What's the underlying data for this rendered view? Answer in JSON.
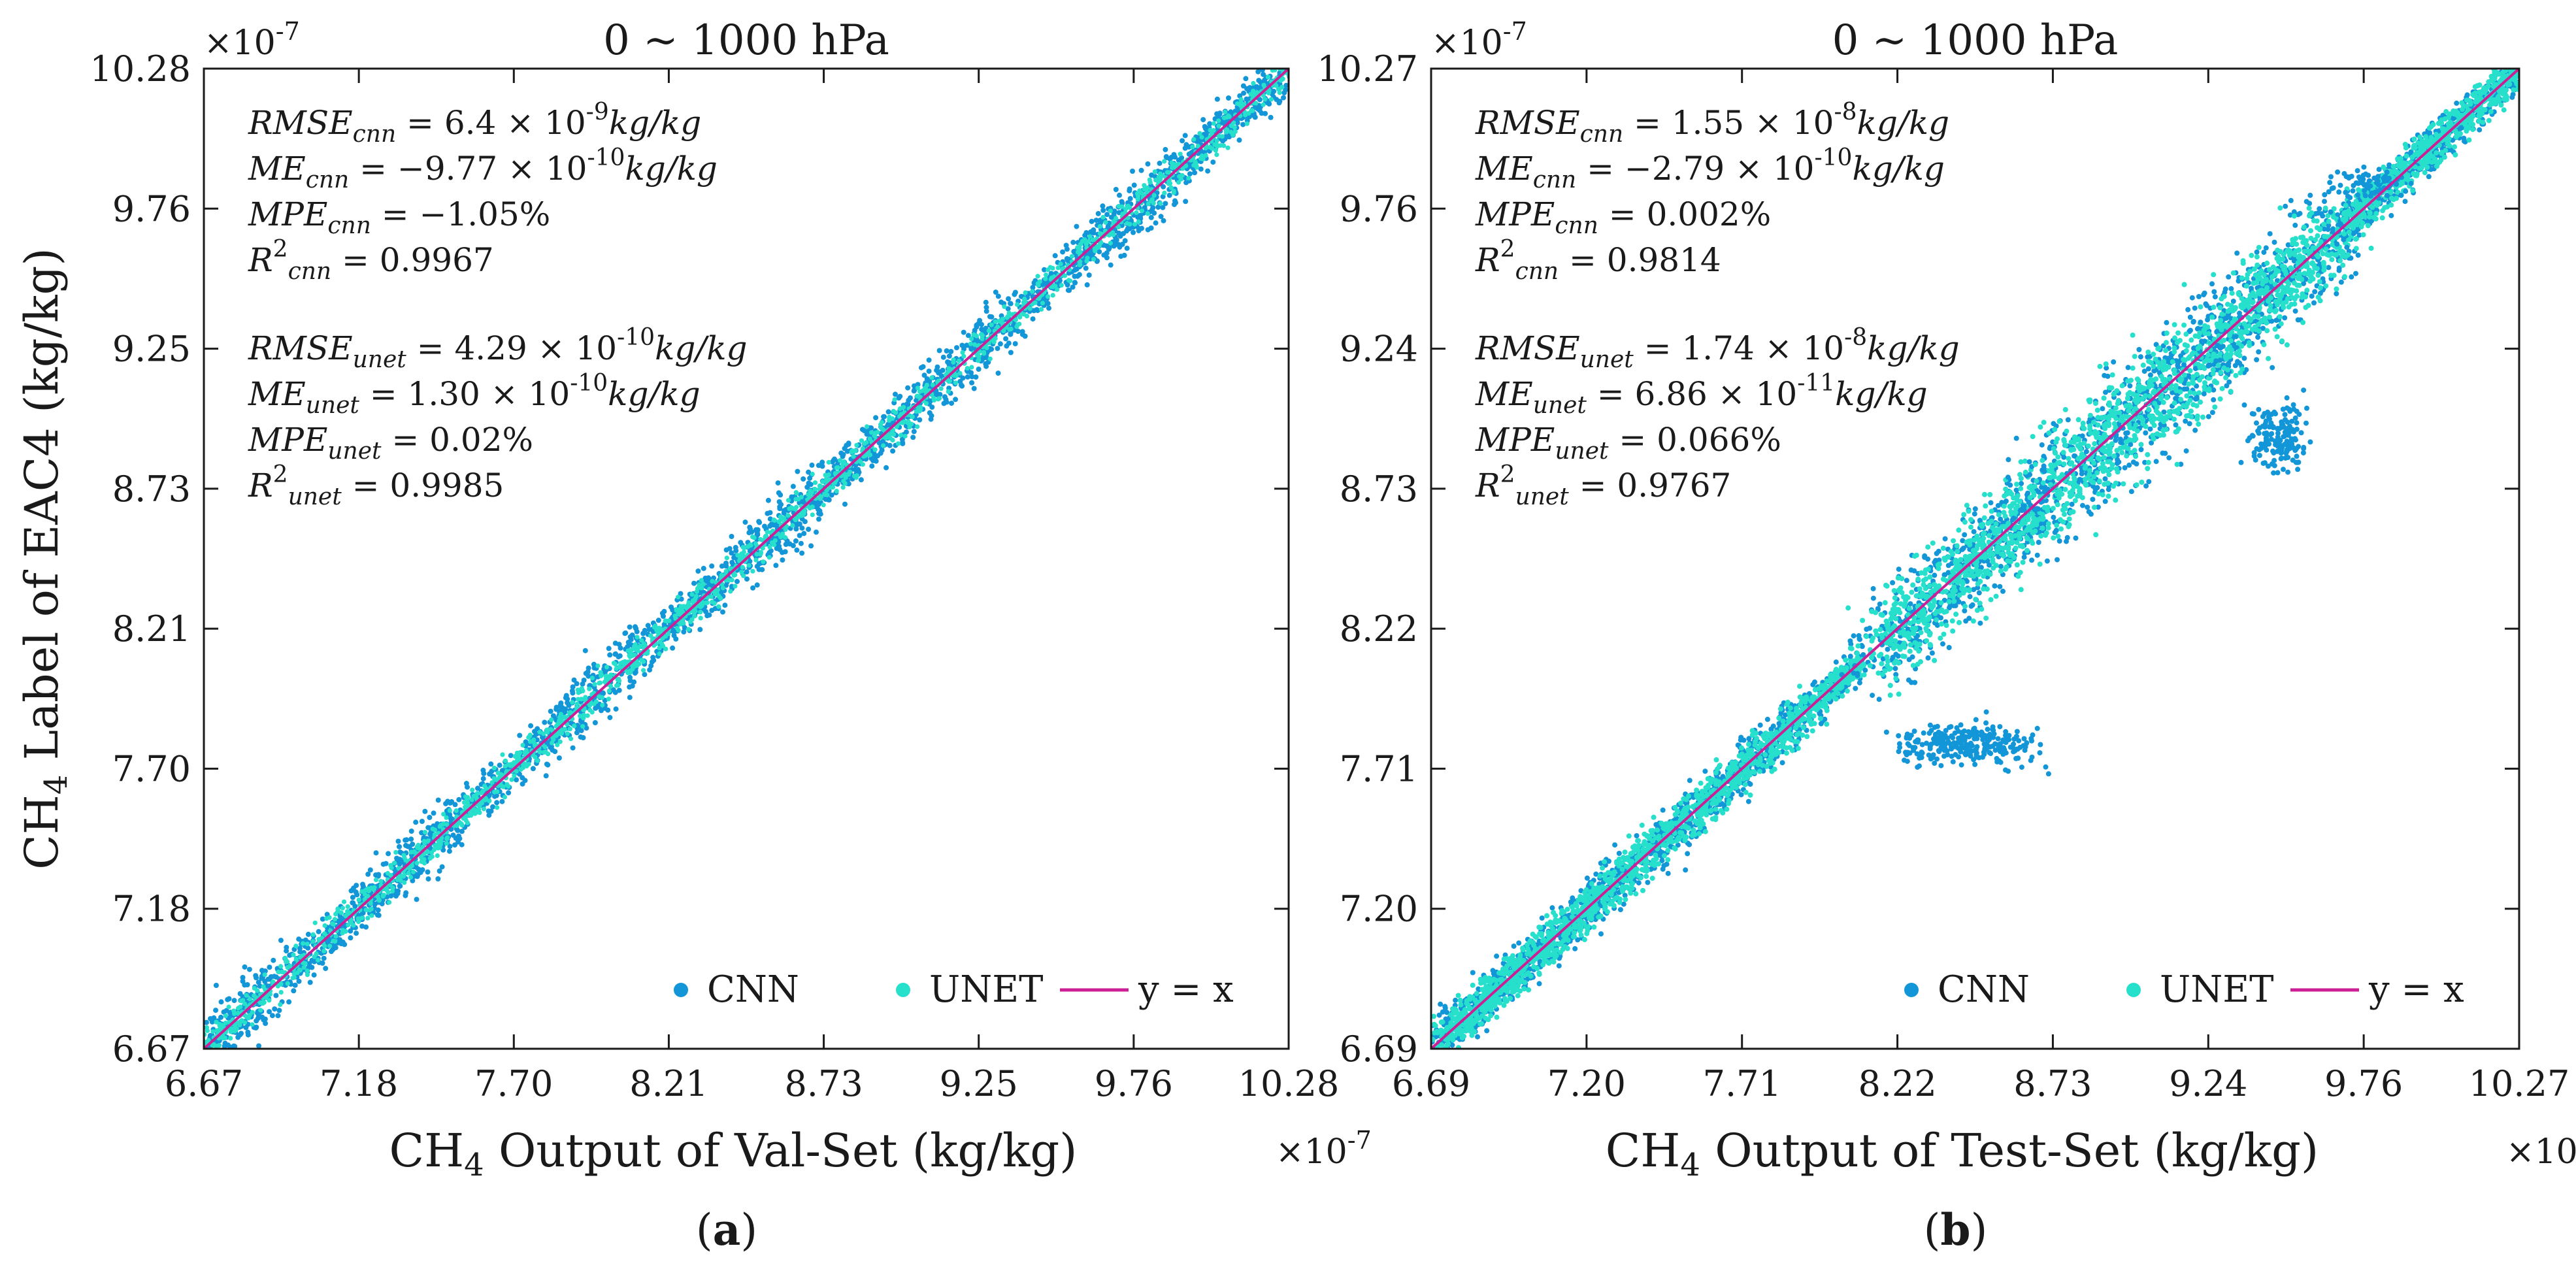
{
  "chart_data": [
    {
      "type": "scatter",
      "panel_label": "a",
      "title": "0 ~ 1000 hPa",
      "xlabel_prefix": "CH",
      "xlabel_sub": "4",
      "xlabel_rest": " Output of Val-Set (kg/kg)",
      "ylabel_prefix": "CH",
      "ylabel_sub": "4",
      "ylabel_rest": " Label of EAC4 (kg/kg)",
      "scale_label": "×10",
      "scale_exp": "-7",
      "xlim": [
        6.67,
        10.28
      ],
      "ylim": [
        6.67,
        10.28
      ],
      "xticks": [
        "6.67",
        "7.18",
        "7.70",
        "8.21",
        "8.73",
        "9.25",
        "9.76",
        "10.28"
      ],
      "yticks": [
        "6.67",
        "7.18",
        "7.70",
        "8.21",
        "8.73",
        "9.25",
        "9.76",
        "10.28"
      ],
      "stats_cnn": {
        "rmse_lbl": "RMSE",
        "rmse_val": " = 6.4 × 10",
        "rmse_exp": "-9",
        "rmse_unit": "kg/kg",
        "me_lbl": "ME",
        "me_val": " = −9.77 × 10",
        "me_exp": "-10",
        "me_unit": "kg/kg",
        "mpe_lbl": "MPE",
        "mpe_val": " = −1.05%",
        "r2_lbl": "R",
        "r2_val": " = 0.9967"
      },
      "stats_unet": {
        "rmse_lbl": "RMSE",
        "rmse_val": " = 4.29 × 10",
        "rmse_exp": "-10",
        "rmse_unit": "kg/kg",
        "me_lbl": "ME",
        "me_val": " = 1.30 × 10",
        "me_exp": "-10",
        "me_unit": "kg/kg",
        "mpe_lbl": "MPE",
        "mpe_val": " = 0.02%",
        "r2_lbl": "R",
        "r2_val": " = 0.9985"
      },
      "legend": [
        "CNN",
        "UNET",
        "y = x"
      ],
      "legend_position": "bottom-right"
    },
    {
      "type": "scatter",
      "panel_label": "b",
      "title": "0 ~ 1000 hPa",
      "xlabel_prefix": "CH",
      "xlabel_sub": "4",
      "xlabel_rest": " Output of Test-Set (kg/kg)",
      "scale_label": "×10",
      "scale_exp": "-7",
      "xlim": [
        6.69,
        10.27
      ],
      "ylim": [
        6.69,
        10.27
      ],
      "xticks": [
        "6.69",
        "7.20",
        "7.71",
        "8.22",
        "8.73",
        "9.24",
        "9.76",
        "10.27"
      ],
      "yticks": [
        "6.69",
        "7.20",
        "7.71",
        "8.22",
        "8.73",
        "9.24",
        "9.76",
        "10.27"
      ],
      "stats_cnn": {
        "rmse_lbl": "RMSE",
        "rmse_val": " = 1.55 × 10",
        "rmse_exp": "-8",
        "rmse_unit": "kg/kg",
        "me_lbl": "ME",
        "me_val": " = −2.79 × 10",
        "me_exp": "-10",
        "me_unit": "kg/kg",
        "mpe_lbl": "MPE",
        "mpe_val": " = 0.002%",
        "r2_lbl": "R",
        "r2_val": " = 0.9814"
      },
      "stats_unet": {
        "rmse_lbl": "RMSE",
        "rmse_val": " = 1.74 × 10",
        "rmse_exp": "-8",
        "rmse_unit": "kg/kg",
        "me_lbl": "ME",
        "me_val": " = 6.86 × 10",
        "me_exp": "-11",
        "me_unit": "kg/kg",
        "mpe_lbl": "MPE",
        "mpe_val": " = 0.066%",
        "r2_lbl": "R",
        "r2_val": " = 0.9767"
      },
      "legend": [
        "CNN",
        "UNET",
        "y = x"
      ],
      "legend_position": "bottom-right"
    }
  ],
  "colors": {
    "cnn": "#1296d8",
    "unet": "#26e0cc",
    "identity": "#cc1f96"
  }
}
